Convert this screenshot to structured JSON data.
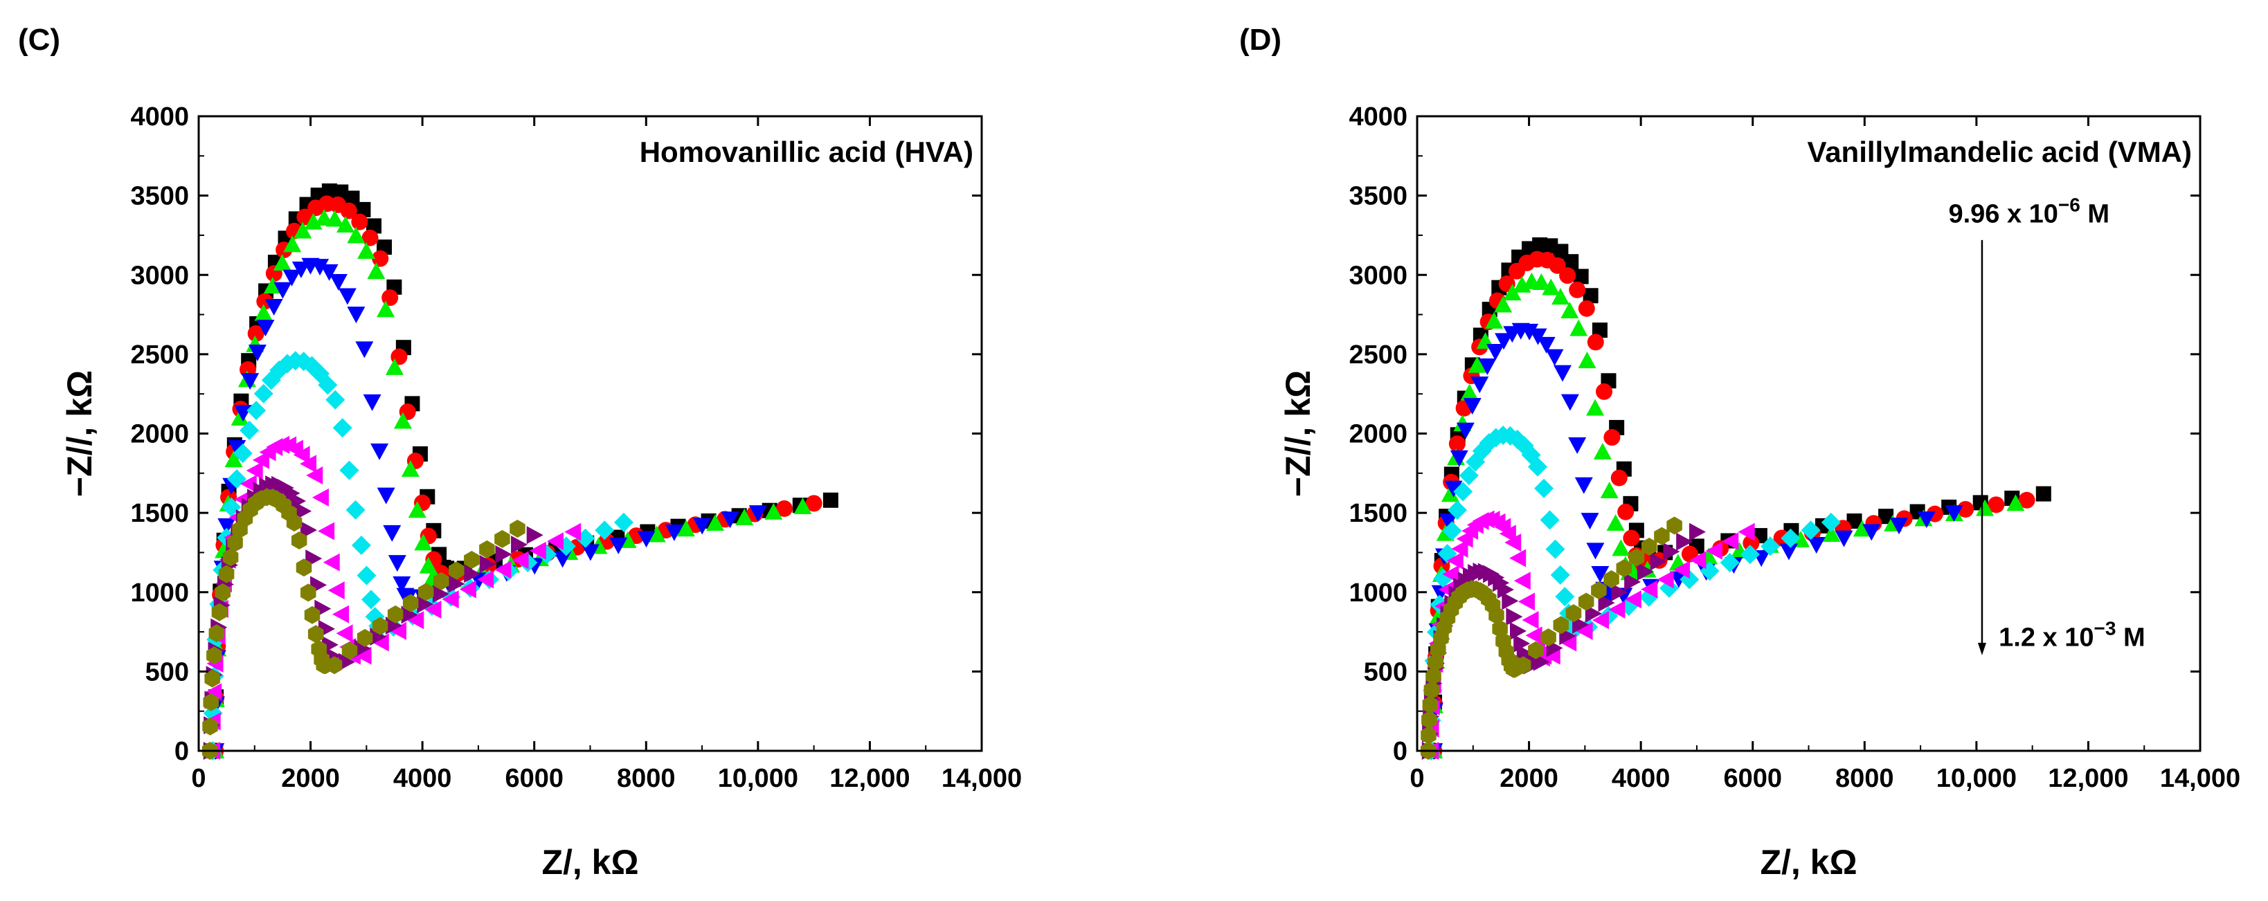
{
  "chart_data": [
    {
      "panel_label": "(C)",
      "type": "scatter",
      "title": "Homovanillic acid (HVA)",
      "xlabel": "Z/, kΩ",
      "ylabel": "−Z//, kΩ",
      "xlim": [
        0,
        14000
      ],
      "ylim": [
        0,
        4000
      ],
      "xticks": [
        0,
        2000,
        4000,
        6000,
        8000,
        10000,
        12000,
        14000
      ],
      "xtick_labels": [
        "0",
        "2000",
        "4000",
        "6000",
        "8000",
        "10,000",
        "12,000",
        "14,000"
      ],
      "yticks": [
        0,
        500,
        1000,
        1500,
        2000,
        2500,
        3000,
        3500,
        4000
      ],
      "ytick_labels": [
        "0",
        "500",
        "1000",
        "1500",
        "2000",
        "2500",
        "3000",
        "3500",
        "4000"
      ],
      "annotations": [],
      "series": [
        {
          "name": "s1",
          "marker": "square",
          "color": "#000000",
          "z0": 300,
          "zmin": 4500,
          "peak": 3530,
          "valley": 1150,
          "zend": 11300,
          "tail_end": 1580
        },
        {
          "name": "s2",
          "marker": "circle",
          "color": "#ff0000",
          "z0": 300,
          "zmin": 4400,
          "peak": 3450,
          "valley": 1120,
          "zend": 11000,
          "tail_end": 1560
        },
        {
          "name": "s3",
          "marker": "triangle-up",
          "color": "#00ee00",
          "z0": 300,
          "zmin": 4300,
          "peak": 3360,
          "valley": 1080,
          "zend": 10800,
          "tail_end": 1540
        },
        {
          "name": "s4",
          "marker": "triangle-down",
          "color": "#0000ff",
          "z0": 300,
          "zmin": 3800,
          "peak": 3060,
          "valley": 970,
          "zend": 10000,
          "tail_end": 1500
        },
        {
          "name": "s5",
          "marker": "diamond",
          "color": "#00e5ee",
          "z0": 250,
          "zmin": 3300,
          "peak": 2460,
          "valley": 780,
          "zend": 7600,
          "tail_end": 1440
        },
        {
          "name": "s6",
          "marker": "triangle-left",
          "color": "#ff00ff",
          "z0": 250,
          "zmin": 2800,
          "peak": 1930,
          "valley": 600,
          "zend": 6700,
          "tail_end": 1380
        },
        {
          "name": "s7",
          "marker": "triangle-right",
          "color": "#800080",
          "z0": 220,
          "zmin": 2500,
          "peak": 1680,
          "valley": 560,
          "zend": 6000,
          "tail_end": 1360
        },
        {
          "name": "s8",
          "marker": "hexagon",
          "color": "#808000",
          "z0": 200,
          "zmin": 2300,
          "peak": 1600,
          "valley": 540,
          "zend": 5700,
          "tail_end": 1400
        }
      ]
    },
    {
      "panel_label": "(D)",
      "type": "scatter",
      "title": "Vanillylmandelic acid (VMA)",
      "xlabel": "Z/, kΩ",
      "ylabel": "−Z//, kΩ",
      "xlim": [
        0,
        14000
      ],
      "ylim": [
        0,
        4000
      ],
      "xticks": [
        0,
        2000,
        4000,
        6000,
        8000,
        10000,
        12000,
        14000
      ],
      "xtick_labels": [
        "0",
        "2000",
        "4000",
        "6000",
        "8000",
        "10,000",
        "12,000",
        "14,000"
      ],
      "yticks": [
        0,
        500,
        1000,
        1500,
        2000,
        2500,
        3000,
        3500,
        4000
      ],
      "ytick_labels": [
        "0",
        "500",
        "1000",
        "1500",
        "2000",
        "2500",
        "3000",
        "3500",
        "4000"
      ],
      "annotations": [
        {
          "text": "9.96 x 10",
          "sup": "−6",
          "unit": " M",
          "x": 9500,
          "y": 3330
        },
        {
          "text": "1.2 x 10",
          "sup": "−3",
          "unit": " M",
          "x": 10400,
          "y": 660
        }
      ],
      "arrow": {
        "x": 10100,
        "y_from": 3220,
        "y_to": 620
      },
      "series": [
        {
          "name": "s1",
          "marker": "square",
          "color": "#000000",
          "z0": 300,
          "zmin": 4200,
          "peak": 3190,
          "valley": 1250,
          "zend": 11200,
          "tail_end": 1620
        },
        {
          "name": "s2",
          "marker": "circle",
          "color": "#ff0000",
          "z0": 300,
          "zmin": 4100,
          "peak": 3100,
          "valley": 1200,
          "zend": 10900,
          "tail_end": 1580
        },
        {
          "name": "s3",
          "marker": "triangle-up",
          "color": "#00ee00",
          "z0": 300,
          "zmin": 3900,
          "peak": 2960,
          "valley": 1140,
          "zend": 10700,
          "tail_end": 1560
        },
        {
          "name": "s4",
          "marker": "triangle-down",
          "color": "#0000ff",
          "z0": 300,
          "zmin": 3500,
          "peak": 2650,
          "valley": 980,
          "zend": 9600,
          "tail_end": 1500
        },
        {
          "name": "s5",
          "marker": "diamond",
          "color": "#00e5ee",
          "z0": 250,
          "zmin": 2900,
          "peak": 1990,
          "valley": 780,
          "zend": 7400,
          "tail_end": 1440
        },
        {
          "name": "s6",
          "marker": "triangle-left",
          "color": "#ff00ff",
          "z0": 250,
          "zmin": 2300,
          "peak": 1460,
          "valley": 600,
          "zend": 5900,
          "tail_end": 1380
        },
        {
          "name": "s7",
          "marker": "triangle-right",
          "color": "#800080",
          "z0": 220,
          "zmin": 2100,
          "peak": 1130,
          "valley": 560,
          "zend": 5000,
          "tail_end": 1380
        },
        {
          "name": "s8",
          "marker": "hexagon",
          "color": "#808000",
          "z0": 200,
          "zmin": 1800,
          "peak": 1020,
          "valley": 540,
          "zend": 4600,
          "tail_end": 1420
        }
      ]
    }
  ]
}
